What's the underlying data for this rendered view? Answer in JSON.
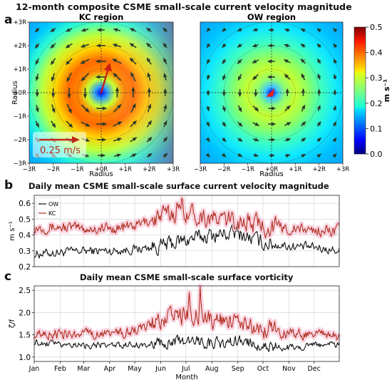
{
  "panel_letters": [
    "a",
    "b",
    "c"
  ],
  "chart_data": [
    {
      "type": "heatmap",
      "title": "12-month composite CSME small-scale current velocity magnitude",
      "panels": [
        {
          "name": "KC region",
          "peak": 0.42,
          "core": 0.05,
          "arrow_scale": 1.0
        },
        {
          "name": "OW region",
          "peak": 0.32,
          "core": 0.04,
          "arrow_scale": 0.7
        }
      ],
      "xlabel": "Radius",
      "ylabel": "Radius",
      "x_ticks": [
        "−3R",
        "−2R",
        "−1R",
        "+0R",
        "+1R",
        "+2R",
        "+3R"
      ],
      "y_ticks": [
        "+3R",
        "+2R",
        "+1R",
        "+0R",
        "−1R",
        "−2R",
        "−3R"
      ],
      "reference_arrow_label": "0.25 m/s",
      "colorbar": {
        "label": "m s⁻¹",
        "range": [
          0.0,
          0.5
        ],
        "ticks": [
          "0.5",
          "0.4",
          "0.3",
          "0.2",
          "0.1",
          "0.0"
        ],
        "colormap": "jet"
      }
    },
    {
      "type": "line",
      "title": "Daily mean CSME small-scale surface current velocity magnitude",
      "ylabel": "m s⁻¹",
      "ylim": [
        0.2,
        0.65
      ],
      "y_ticks": [
        "0.6",
        "0.5",
        "0.4",
        "0.3",
        "0.2"
      ],
      "y_tick_values": [
        0.6,
        0.5,
        0.4,
        0.3,
        0.2
      ],
      "x_ticks": [
        "Jan",
        "Feb",
        "Mar",
        "Apr",
        "May",
        "Jun",
        "Jul",
        "Aug",
        "Sep",
        "Oct",
        "Nov",
        "Dec"
      ],
      "legend": "top-left",
      "grid": true,
      "series": [
        {
          "name": "OW",
          "color": "#111111",
          "monthly": [
            0.28,
            0.29,
            0.3,
            0.3,
            0.31,
            0.33,
            0.37,
            0.4,
            0.41,
            0.35,
            0.33,
            0.32,
            0.3
          ]
        },
        {
          "name": "KC",
          "color": "#b22d1f",
          "monthly": [
            0.45,
            0.45,
            0.44,
            0.44,
            0.46,
            0.52,
            0.55,
            0.5,
            0.49,
            0.46,
            0.44,
            0.43,
            0.43
          ]
        }
      ]
    },
    {
      "type": "line",
      "title": "Daily mean CSME small-scale surface vorticity",
      "ylabel": "ζ/f",
      "xlabel": "Month",
      "ylim": [
        0.9,
        2.6
      ],
      "y_ticks": [
        "2.5",
        "2.0",
        "1.5",
        "1.0"
      ],
      "y_tick_values": [
        2.5,
        2.0,
        1.5,
        1.0
      ],
      "x_ticks": [
        "Jan",
        "Feb",
        "Mar",
        "Apr",
        "May",
        "Jun",
        "Jul",
        "Aug",
        "Sep",
        "Oct",
        "Nov",
        "Dec"
      ],
      "grid": true,
      "series": [
        {
          "color": "#111111",
          "monthly": [
            1.33,
            1.3,
            1.27,
            1.26,
            1.27,
            1.32,
            1.38,
            1.3,
            1.35,
            1.25,
            1.2,
            1.28,
            1.28
          ]
        },
        {
          "color": "#b22d1f",
          "monthly": [
            1.55,
            1.52,
            1.5,
            1.52,
            1.58,
            1.82,
            1.95,
            1.82,
            1.82,
            1.62,
            1.52,
            1.5,
            1.45
          ]
        }
      ]
    }
  ]
}
